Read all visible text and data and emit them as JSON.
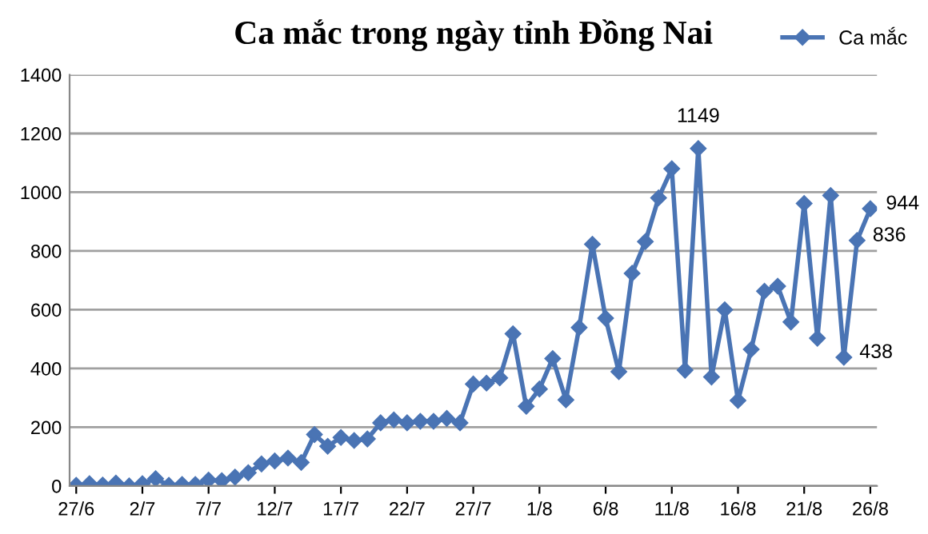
{
  "chart_data": {
    "type": "line",
    "title": "Ca mắc trong ngày tỉnh Đồng Nai",
    "categories": [
      "27/6",
      null,
      null,
      null,
      null,
      "2/7",
      null,
      null,
      null,
      null,
      "7/7",
      null,
      null,
      null,
      null,
      "12/7",
      null,
      null,
      null,
      null,
      "17/7",
      null,
      null,
      null,
      null,
      "22/7",
      null,
      null,
      null,
      null,
      "27/7",
      null,
      null,
      null,
      null,
      "1/8",
      null,
      null,
      null,
      null,
      "6/8",
      null,
      null,
      null,
      null,
      "11/8",
      null,
      null,
      null,
      null,
      "16/8",
      null,
      null,
      null,
      null,
      "21/8",
      null,
      null,
      null,
      null,
      "26/8"
    ],
    "series": [
      {
        "name": "Ca mắc",
        "color": "#4a74b4",
        "values": [
          2,
          8,
          3,
          10,
          0,
          8,
          25,
          2,
          5,
          5,
          20,
          18,
          30,
          45,
          75,
          85,
          95,
          80,
          175,
          135,
          165,
          155,
          160,
          215,
          225,
          215,
          220,
          220,
          230,
          215,
          347,
          350,
          368,
          518,
          271,
          330,
          434,
          293,
          539,
          823,
          571,
          389,
          724,
          832,
          981,
          1080,
          394,
          1149,
          371,
          600,
          291,
          465,
          663,
          680,
          558,
          962,
          503,
          989,
          438,
          836,
          944
        ],
        "value_labels": [
          null,
          null,
          null,
          null,
          null,
          null,
          null,
          null,
          null,
          null,
          null,
          null,
          null,
          null,
          null,
          null,
          null,
          null,
          null,
          null,
          null,
          null,
          null,
          null,
          null,
          null,
          null,
          null,
          null,
          null,
          null,
          null,
          null,
          null,
          null,
          null,
          null,
          null,
          null,
          null,
          null,
          null,
          null,
          null,
          null,
          null,
          null,
          "1149",
          null,
          null,
          null,
          null,
          null,
          null,
          null,
          null,
          null,
          null,
          "438",
          "836",
          "944"
        ]
      }
    ],
    "ylim": [
      0,
      1400
    ],
    "yticks": [
      0,
      200,
      400,
      600,
      800,
      1000,
      1200,
      1400
    ],
    "grid": "y",
    "legend": "top right",
    "marker": "diamond",
    "line_style": "solid"
  }
}
